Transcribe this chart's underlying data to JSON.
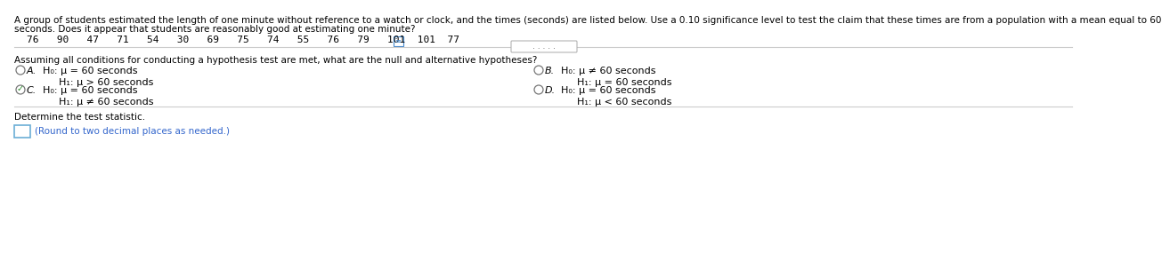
{
  "bg_color": "#ffffff",
  "header_line1": "A group of students estimated the length of one minute without reference to a watch or clock, and the times (seconds) are listed below. Use a 0.10 significance level to test the claim that these times are from a population with a mean equal to 60",
  "header_line2": "seconds. Does it appear that students are reasonably good at estimating one minute?",
  "data_values": "76   90   47   71   54   30   69   75   74   55   76   79   101  101  77",
  "question_text": "Assuming all conditions for conducting a hypothesis test are met, what are the null and alternative hypotheses?",
  "opt_A_h0": "H₀: μ = 60 seconds",
  "opt_A_h1": "H₁: μ > 60 seconds",
  "opt_B_h0": "H₀: μ ≠ 60 seconds",
  "opt_B_h1": "H₁: μ = 60 seconds",
  "opt_C_h0": "H₀: μ = 60 seconds",
  "opt_C_h1": "H₁: μ ≠ 60 seconds",
  "opt_D_h0": "H₀: μ = 60 seconds",
  "opt_D_h1": "H₁: μ < 60 seconds",
  "determine_text": "Determine the test statistic.",
  "round_text": "(Round to two decimal places as needed.)",
  "text_color": "#000000",
  "gray_text": "#555555",
  "blue_text_color": "#3366cc",
  "check_color": "#228B22",
  "radio_color": "#777777",
  "input_border_color": "#6baed6",
  "sep_color": "#cccccc",
  "dots_color": "#555555"
}
